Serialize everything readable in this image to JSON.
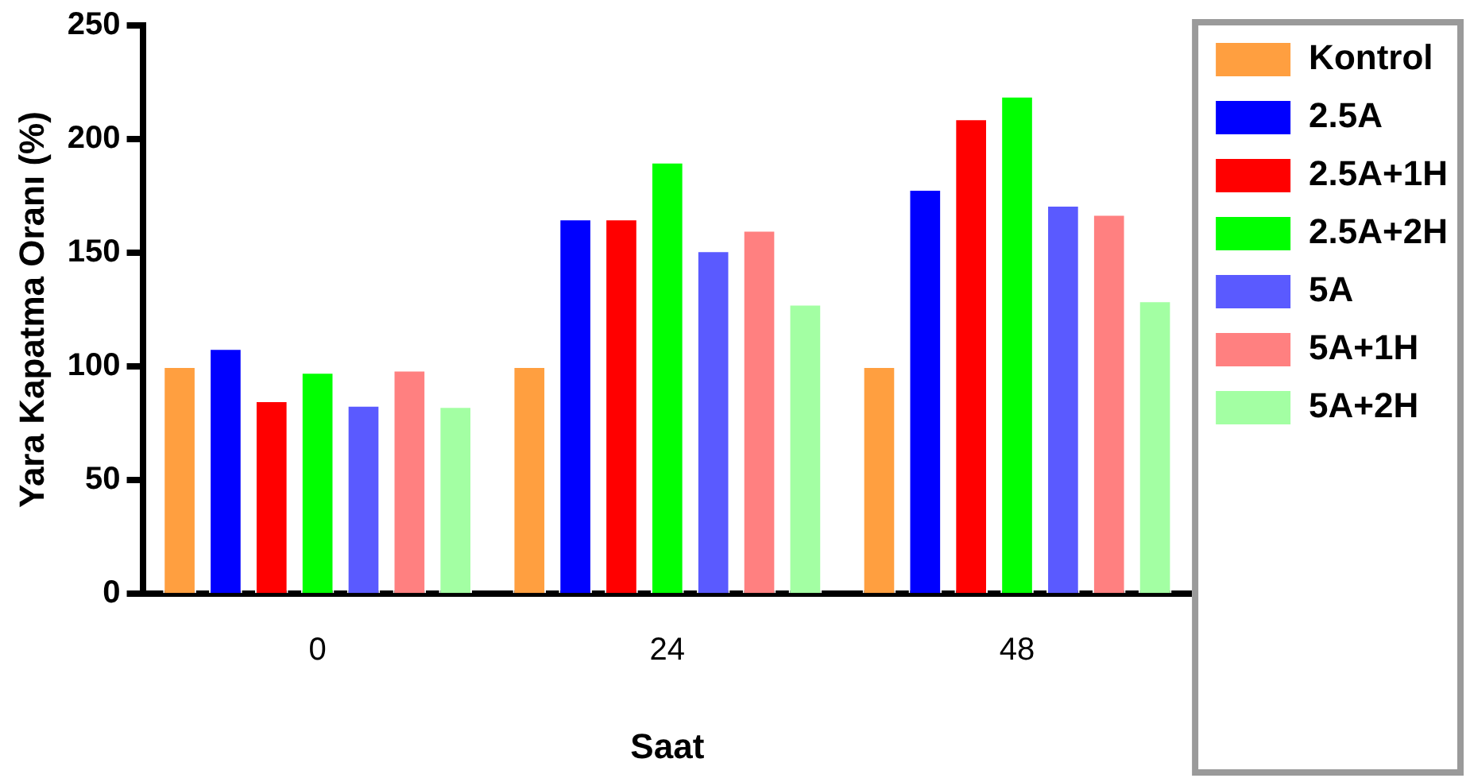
{
  "chart_data": {
    "type": "bar",
    "xlabel": "Saat",
    "ylabel": "Yara Kapatma Oranı (%)",
    "categories": [
      "0",
      "24",
      "48"
    ],
    "series": [
      {
        "name": "Kontrol",
        "color": "#ff9f40",
        "values": [
          100,
          100,
          100
        ]
      },
      {
        "name": "2.5A",
        "color": "#0000ff",
        "values": [
          108,
          165,
          178
        ]
      },
      {
        "name": "2.5A+1H",
        "color": "#ff0000",
        "values": [
          85,
          165,
          209
        ]
      },
      {
        "name": "2.5A+2H",
        "color": "#00ff00",
        "values": [
          97.5,
          190,
          219
        ]
      },
      {
        "name": "5A",
        "color": "#5a5aff",
        "values": [
          83,
          151,
          171
        ]
      },
      {
        "name": "5A+1H",
        "color": "#ff8080",
        "values": [
          98.5,
          160,
          167
        ]
      },
      {
        "name": "5A+2H",
        "color": "#a3ffa3",
        "values": [
          82.5,
          127.5,
          129
        ]
      }
    ],
    "ylim": [
      0,
      250
    ],
    "yticks": [
      0,
      50,
      100,
      150,
      200,
      250
    ],
    "grid": false,
    "legend": "right"
  }
}
